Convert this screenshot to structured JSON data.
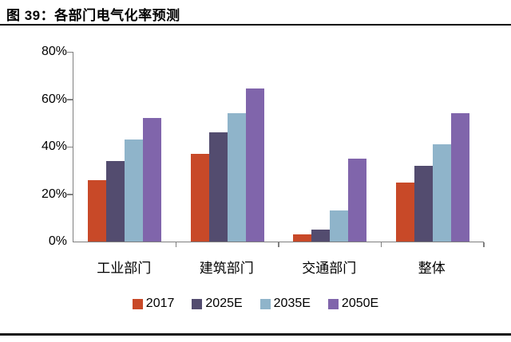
{
  "header": {
    "title": "图 39：各部门电气化率预测"
  },
  "chart_data": {
    "type": "bar",
    "title": "各部门电气化率预测",
    "categories": [
      "工业部门",
      "建筑部门",
      "交通部门",
      "整体"
    ],
    "series": [
      {
        "name": "2017",
        "color": "#C84928",
        "values": [
          26,
          37,
          3,
          25
        ]
      },
      {
        "name": "2025E",
        "color": "#534C6F",
        "values": [
          34,
          46,
          5,
          32
        ]
      },
      {
        "name": "2035E",
        "color": "#8FB4CA",
        "values": [
          43,
          54,
          13,
          41
        ]
      },
      {
        "name": "2050E",
        "color": "#8065AB",
        "values": [
          52,
          64.5,
          35,
          54
        ]
      }
    ],
    "xlabel": "",
    "ylabel": "",
    "ylim": [
      0,
      80
    ],
    "ytick_step": 20,
    "ytick_labels": [
      "0%",
      "20%",
      "40%",
      "60%",
      "80%"
    ],
    "grid": false,
    "legend_position": "bottom"
  },
  "colors": {
    "axis": "#7f7f7f",
    "title_rule": "#000000",
    "footer_rule": "#141414",
    "background": "#ffffff"
  }
}
